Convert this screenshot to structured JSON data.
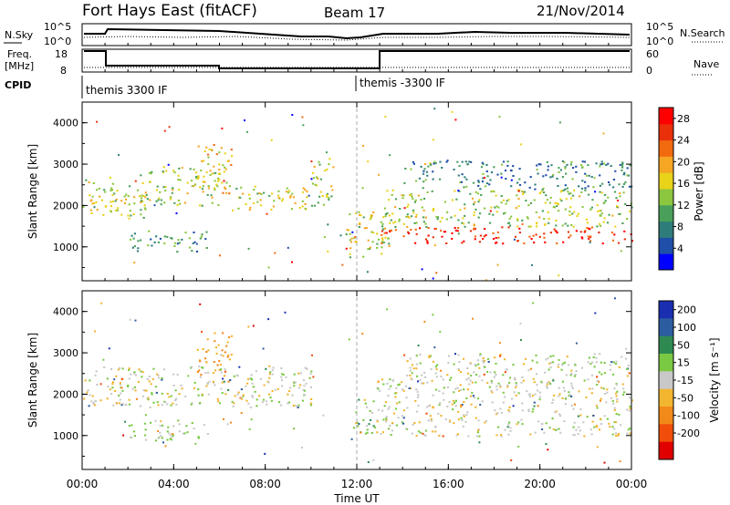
{
  "header": {
    "station": "Fort Hays East (fitACF)",
    "beam": "Beam 17",
    "date": "21/Nov/2014"
  },
  "panels": {
    "nsky": {
      "left_label": "N.Sky",
      "right_label": "N.Search",
      "left_ticks": [
        "10^5",
        "10^0"
      ],
      "right_ticks": [
        "10^5",
        "10^0"
      ]
    },
    "freq": {
      "left_label_1": "Freq.",
      "left_label_2": "[MHz]",
      "right_label": "Nave",
      "left_ticks": [
        "18",
        "8"
      ],
      "right_ticks": [
        "60",
        "0"
      ]
    },
    "cpid": {
      "label": "CPID",
      "segments": [
        "themis 3300 IF",
        "themis -3300 IF"
      ]
    }
  },
  "axes": {
    "ylabel": "Slant Range [km]",
    "xlabel": "Time UT",
    "yticks": [
      "1000",
      "2000",
      "3000",
      "4000"
    ],
    "xticks": [
      "00:00",
      "04:00",
      "08:00",
      "12:00",
      "16:00",
      "20:00",
      "00:00"
    ]
  },
  "power_colorbar": {
    "label": "Power [dB]",
    "ticks": [
      "4",
      "8",
      "12",
      "16",
      "20",
      "24",
      "28"
    ],
    "colors": [
      "#0000ff",
      "#1f4fa8",
      "#2f7d7a",
      "#4aa05a",
      "#8cc63f",
      "#e8d21a",
      "#f5a623",
      "#f26a10",
      "#e8300a",
      "#ff0000"
    ]
  },
  "velocity_colorbar": {
    "label": "Velocity [m s⁻¹]",
    "ticks": [
      "200",
      "100",
      "50",
      "15",
      "-15",
      "-50",
      "-100",
      "-200"
    ],
    "colors": [
      "#1a2fb0",
      "#2c5da0",
      "#2f8a52",
      "#7ac943",
      "#c8c8c8",
      "#f2b530",
      "#f28a1a",
      "#f04e0a",
      "#e00000"
    ]
  },
  "chart_data": [
    {
      "type": "heatmap",
      "title": "Power",
      "xlabel": "Time UT",
      "ylabel": "Slant Range [km]",
      "xlim": [
        0,
        24
      ],
      "ylim": [
        180,
        4500
      ],
      "colorbar_range": [
        0,
        30
      ],
      "bands": [
        {
          "t0": 0.0,
          "t1": 1.5,
          "r0": 1700,
          "r1": 2700,
          "level": 16
        },
        {
          "t0": 1.5,
          "t1": 3.0,
          "r0": 1700,
          "r1": 2500,
          "level": 14
        },
        {
          "t0": 2.5,
          "t1": 6.0,
          "r0": 2000,
          "r1": 3000,
          "level": 14
        },
        {
          "t0": 5.0,
          "t1": 6.5,
          "r0": 2300,
          "r1": 3500,
          "level": 18
        },
        {
          "t0": 6.5,
          "t1": 10.0,
          "r0": 1900,
          "r1": 2500,
          "level": 16
        },
        {
          "t0": 10.0,
          "t1": 11.0,
          "r0": 2000,
          "r1": 3200,
          "level": 14
        },
        {
          "t0": 2.0,
          "t1": 5.5,
          "r0": 900,
          "r1": 1400,
          "level": 10
        },
        {
          "t0": 11.5,
          "t1": 13.5,
          "r0": 700,
          "r1": 1900,
          "level": 16
        },
        {
          "t0": 13.0,
          "t1": 24.0,
          "r0": 1100,
          "r1": 1500,
          "level": 26
        },
        {
          "t0": 13.0,
          "t1": 24.0,
          "r0": 1500,
          "r1": 2400,
          "level": 14
        },
        {
          "t0": 14.0,
          "t1": 24.0,
          "r0": 2400,
          "r1": 3100,
          "level": 8
        }
      ]
    },
    {
      "type": "heatmap",
      "title": "Velocity",
      "xlabel": "Time UT",
      "ylabel": "Slant Range [km]",
      "xlim": [
        0,
        24
      ],
      "ylim": [
        180,
        4500
      ],
      "colorbar_range": [
        -200,
        200
      ],
      "bands": [
        {
          "t0": 0.0,
          "t1": 10.0,
          "r0": 1700,
          "r1": 2700,
          "level": 0
        },
        {
          "t0": 5.0,
          "t1": 6.5,
          "r0": 2300,
          "r1": 3500,
          "level": -40
        },
        {
          "t0": 2.0,
          "t1": 5.5,
          "r0": 900,
          "r1": 1400,
          "level": 20
        },
        {
          "t0": 11.8,
          "t1": 12.8,
          "r0": 1000,
          "r1": 1900,
          "level": 40
        },
        {
          "t0": 12.8,
          "t1": 24.0,
          "r0": 1000,
          "r1": 2400,
          "level": 0
        },
        {
          "t0": 14.0,
          "t1": 24.0,
          "r0": 2400,
          "r1": 3000,
          "level": 0
        }
      ]
    }
  ]
}
